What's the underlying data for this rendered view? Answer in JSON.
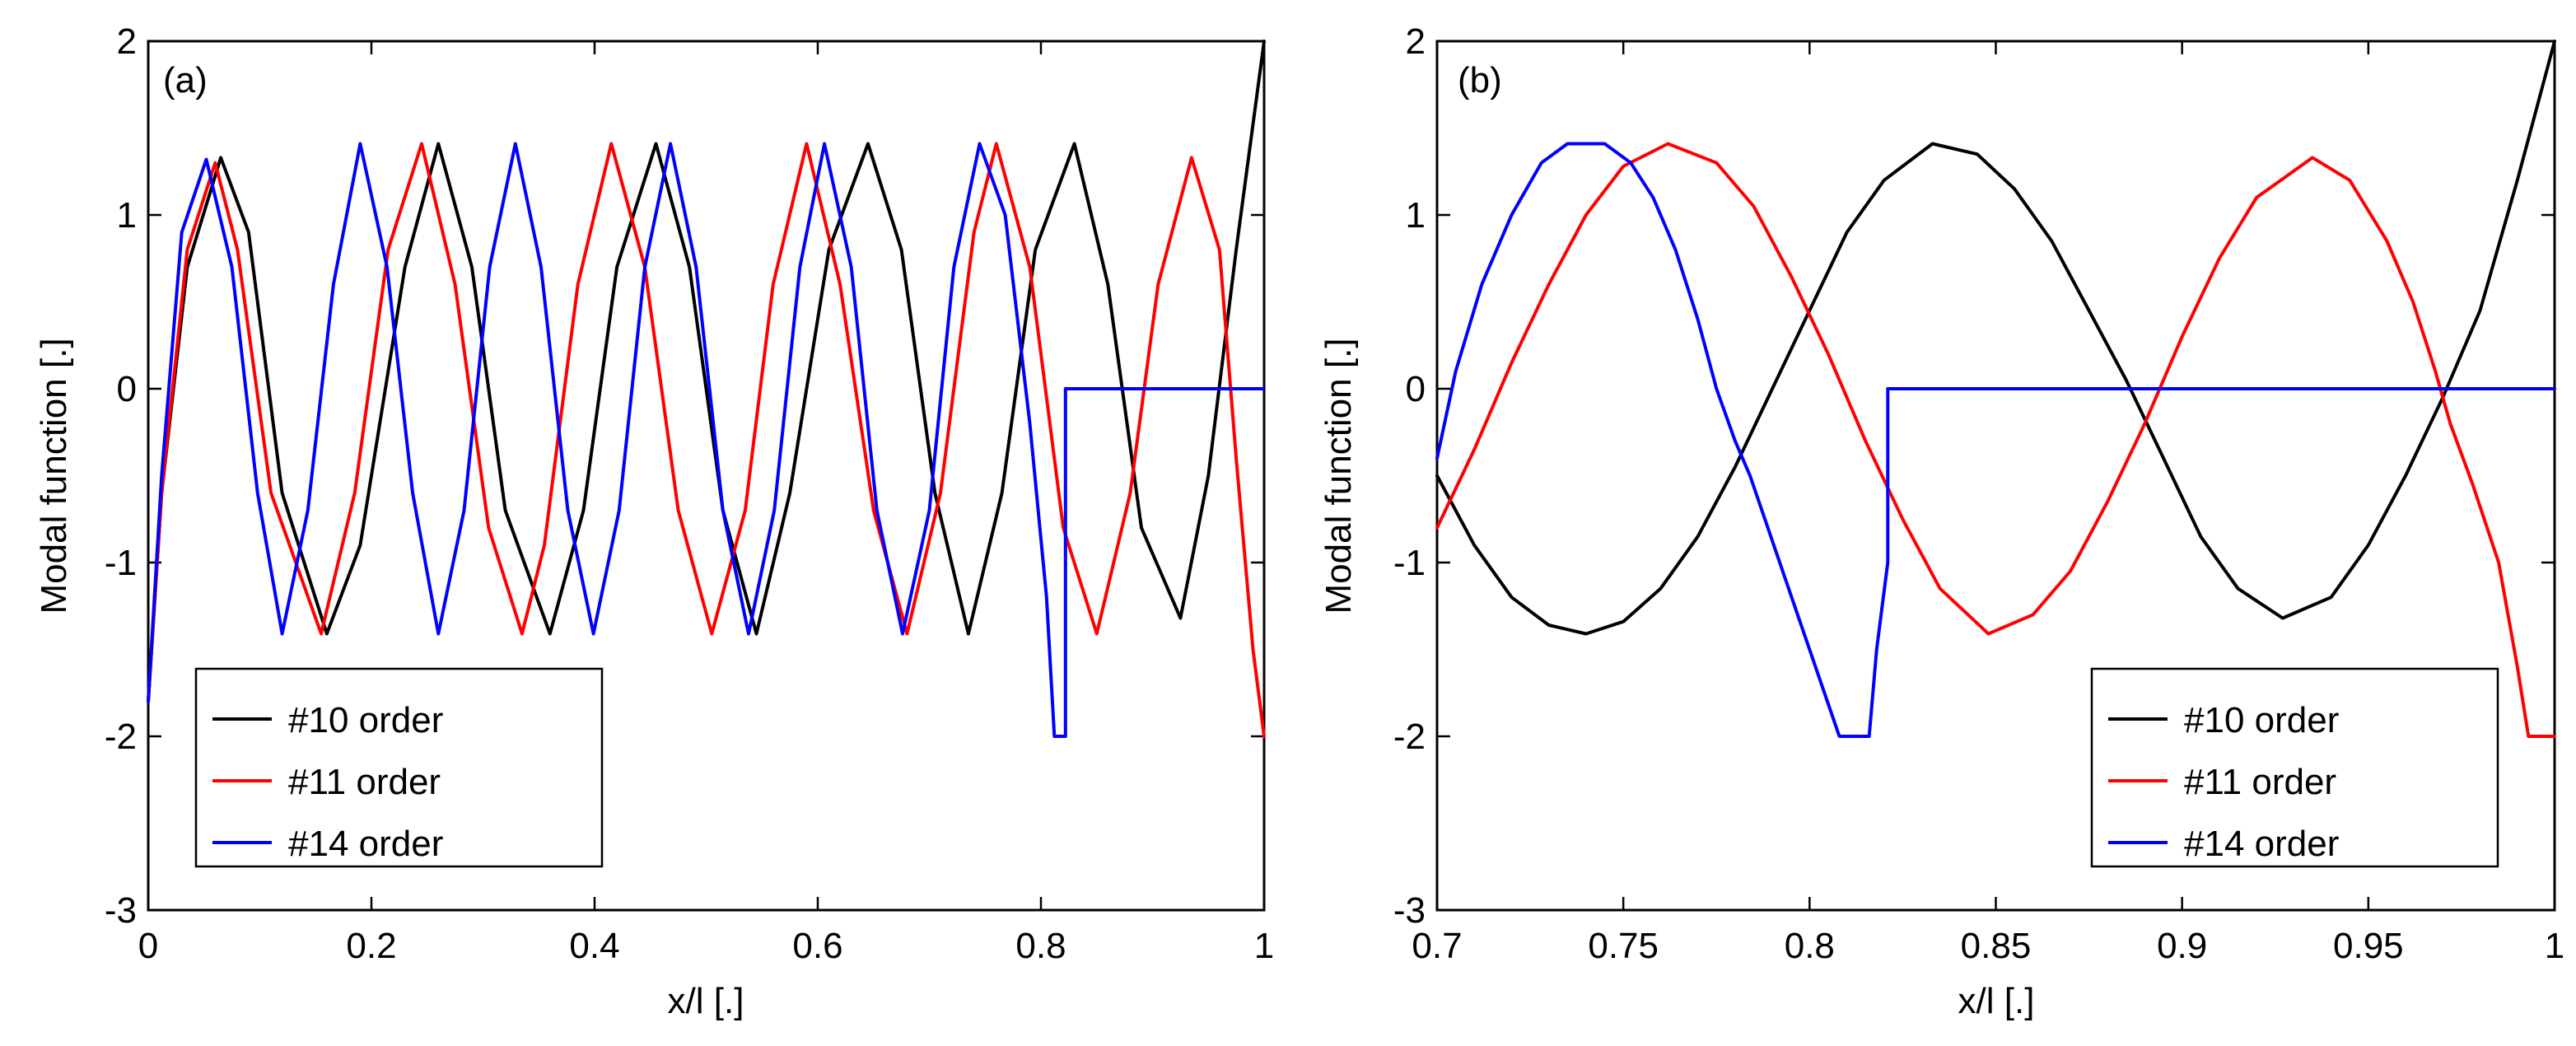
{
  "chart_data": [
    {
      "type": "line",
      "panel_label": "(a)",
      "xlabel": "x/l [.]",
      "ylabel": "Modal function [.]",
      "xlim": [
        0,
        1
      ],
      "ylim": [
        -3,
        2
      ],
      "xticks": [
        0,
        0.2,
        0.4,
        0.6,
        0.8,
        1
      ],
      "xtick_labels": [
        "0",
        "0.2",
        "0.4",
        "0.6",
        "0.8",
        "1"
      ],
      "yticks": [
        -3,
        -2,
        -1,
        0,
        1,
        2
      ],
      "ytick_labels": [
        "-3",
        "-2",
        "-1",
        "0",
        "1",
        "2"
      ],
      "legend_position": "bottom-left",
      "series": [
        {
          "name": "#10 order",
          "color": "#000000",
          "x": [
            0,
            0.012,
            0.035,
            0.065,
            0.09,
            0.12,
            0.16,
            0.19,
            0.23,
            0.26,
            0.29,
            0.32,
            0.36,
            0.39,
            0.42,
            0.455,
            0.485,
            0.515,
            0.545,
            0.575,
            0.61,
            0.645,
            0.675,
            0.705,
            0.735,
            0.765,
            0.795,
            0.83,
            0.86,
            0.89,
            0.925,
            0.95,
            0.975,
            1
          ],
          "y": [
            -1.8,
            -0.6,
            0.7,
            1.33,
            0.9,
            -0.6,
            -1.41,
            -0.9,
            0.7,
            1.41,
            0.7,
            -0.7,
            -1.41,
            -0.7,
            0.7,
            1.41,
            0.7,
            -0.7,
            -1.41,
            -0.6,
            0.8,
            1.41,
            0.8,
            -0.6,
            -1.41,
            -0.6,
            0.8,
            1.41,
            0.6,
            -0.8,
            -1.32,
            -0.5,
            0.8,
            2.0
          ]
        },
        {
          "name": "#11 order",
          "color": "#ff0000",
          "x": [
            0,
            0.012,
            0.035,
            0.06,
            0.08,
            0.11,
            0.155,
            0.185,
            0.215,
            0.245,
            0.275,
            0.305,
            0.335,
            0.355,
            0.385,
            0.415,
            0.445,
            0.475,
            0.505,
            0.535,
            0.56,
            0.59,
            0.62,
            0.65,
            0.68,
            0.71,
            0.74,
            0.76,
            0.79,
            0.82,
            0.85,
            0.88,
            0.905,
            0.935,
            0.96,
            0.975,
            0.99,
            1
          ],
          "y": [
            -1.8,
            -0.6,
            0.8,
            1.3,
            0.8,
            -0.6,
            -1.41,
            -0.6,
            0.8,
            1.41,
            0.6,
            -0.8,
            -1.41,
            -0.9,
            0.6,
            1.41,
            0.7,
            -0.7,
            -1.41,
            -0.7,
            0.6,
            1.41,
            0.6,
            -0.7,
            -1.41,
            -0.6,
            0.9,
            1.41,
            0.7,
            -0.8,
            -1.41,
            -0.6,
            0.6,
            1.33,
            0.8,
            -0.4,
            -1.5,
            -2.0
          ]
        },
        {
          "name": "#14 order",
          "color": "#0000ff",
          "x": [
            0,
            0.012,
            0.03,
            0.052,
            0.075,
            0.098,
            0.12,
            0.143,
            0.166,
            0.19,
            0.214,
            0.237,
            0.26,
            0.283,
            0.306,
            0.329,
            0.352,
            0.376,
            0.399,
            0.422,
            0.445,
            0.468,
            0.491,
            0.515,
            0.538,
            0.561,
            0.584,
            0.606,
            0.63,
            0.653,
            0.676,
            0.7,
            0.722,
            0.745,
            0.768,
            0.79,
            0.805,
            0.812,
            0.815,
            0.822,
            0.822,
            1
          ],
          "y": [
            -1.8,
            -0.5,
            0.9,
            1.32,
            0.7,
            -0.6,
            -1.41,
            -0.7,
            0.6,
            1.41,
            0.7,
            -0.6,
            -1.41,
            -0.7,
            0.7,
            1.41,
            0.7,
            -0.7,
            -1.41,
            -0.7,
            0.7,
            1.41,
            0.7,
            -0.7,
            -1.41,
            -0.7,
            0.7,
            1.41,
            0.7,
            -0.7,
            -1.41,
            -0.7,
            0.7,
            1.41,
            1.0,
            -0.2,
            -1.2,
            -2.0,
            -2.0,
            -2.0,
            0,
            0
          ]
        }
      ]
    },
    {
      "type": "line",
      "panel_label": "(b)",
      "xlabel": "x/l [.]",
      "ylabel": "Modal function [.]",
      "xlim": [
        0.7,
        1
      ],
      "ylim": [
        -3,
        2
      ],
      "xticks": [
        0.7,
        0.75,
        0.8,
        0.85,
        0.9,
        0.95,
        1
      ],
      "xtick_labels": [
        "0.7",
        "0.75",
        "0.8",
        "0.85",
        "0.9",
        "0.95",
        "1"
      ],
      "yticks": [
        -3,
        -2,
        -1,
        0,
        1,
        2
      ],
      "ytick_labels": [
        "-3",
        "-2",
        "-1",
        "0",
        "1",
        "2"
      ],
      "legend_position": "bottom-right",
      "series": [
        {
          "name": "#10 order",
          "color": "#000000",
          "x": [
            0.7,
            0.71,
            0.72,
            0.73,
            0.74,
            0.75,
            0.76,
            0.77,
            0.78,
            0.79,
            0.8,
            0.81,
            0.82,
            0.833,
            0.845,
            0.855,
            0.865,
            0.875,
            0.885,
            0.895,
            0.905,
            0.915,
            0.927,
            0.94,
            0.95,
            0.96,
            0.97,
            0.98,
            0.99,
            1
          ],
          "y": [
            -0.5,
            -0.9,
            -1.2,
            -1.36,
            -1.41,
            -1.34,
            -1.15,
            -0.85,
            -0.45,
            0.0,
            0.45,
            0.9,
            1.2,
            1.41,
            1.35,
            1.15,
            0.85,
            0.45,
            0.05,
            -0.4,
            -0.85,
            -1.15,
            -1.32,
            -1.2,
            -0.9,
            -0.5,
            -0.05,
            0.45,
            1.2,
            2.0
          ]
        },
        {
          "name": "#11 order",
          "color": "#ff0000",
          "x": [
            0.7,
            0.71,
            0.72,
            0.73,
            0.74,
            0.75,
            0.762,
            0.775,
            0.785,
            0.795,
            0.805,
            0.815,
            0.825,
            0.835,
            0.848,
            0.86,
            0.87,
            0.88,
            0.89,
            0.9,
            0.91,
            0.92,
            0.935,
            0.945,
            0.955,
            0.962,
            0.968,
            0.972,
            0.978,
            0.985,
            0.99,
            0.993,
            1
          ],
          "y": [
            -0.8,
            -0.35,
            0.15,
            0.6,
            1.0,
            1.28,
            1.41,
            1.3,
            1.05,
            0.65,
            0.2,
            -0.3,
            -0.75,
            -1.15,
            -1.41,
            -1.3,
            -1.05,
            -0.65,
            -0.2,
            0.3,
            0.75,
            1.1,
            1.33,
            1.2,
            0.85,
            0.5,
            0.1,
            -0.2,
            -0.55,
            -1.0,
            -1.6,
            -2.0,
            -2.0
          ]
        },
        {
          "name": "#14 order",
          "color": "#0000ff",
          "x": [
            0.7,
            0.705,
            0.712,
            0.72,
            0.728,
            0.735,
            0.745,
            0.752,
            0.758,
            0.764,
            0.77,
            0.775,
            0.78,
            0.784,
            0.788,
            0.792,
            0.796,
            0.8,
            0.804,
            0.808,
            0.812,
            0.816,
            0.818,
            0.821,
            0.821,
            1
          ],
          "y": [
            -0.4,
            0.1,
            0.6,
            1.0,
            1.3,
            1.41,
            1.41,
            1.3,
            1.1,
            0.8,
            0.4,
            0.0,
            -0.3,
            -0.5,
            -0.75,
            -1.0,
            -1.25,
            -1.5,
            -1.75,
            -2.0,
            -2.0,
            -2.0,
            -1.5,
            -1.0,
            0,
            0
          ]
        }
      ]
    }
  ]
}
